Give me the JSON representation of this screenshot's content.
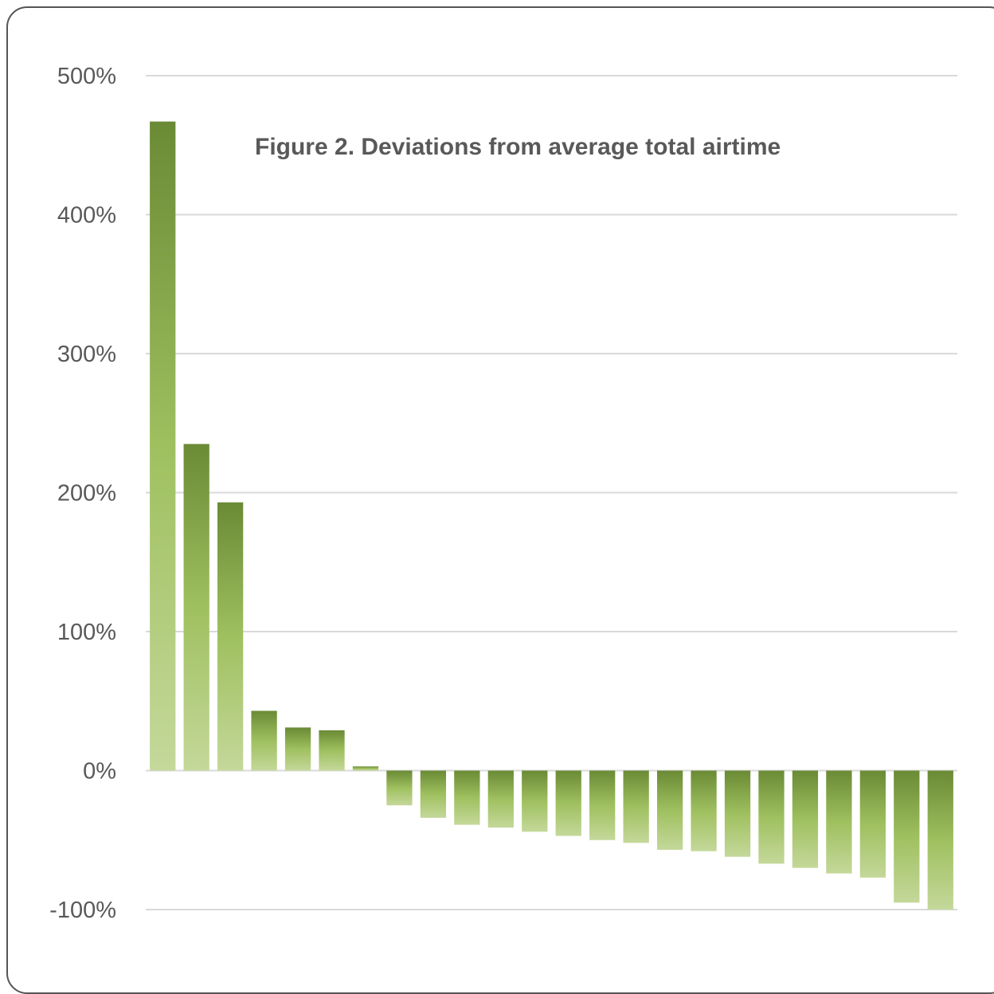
{
  "chart_data": {
    "type": "bar",
    "title": "Figure 2. Deviations from average total airtime",
    "xlabel": "",
    "ylabel": "",
    "ylim": [
      -100,
      500
    ],
    "y_ticks": [
      500,
      400,
      300,
      200,
      100,
      0,
      -100
    ],
    "y_tick_labels": [
      "500%",
      "400%",
      "300%",
      "200%",
      "100%",
      "0%",
      "-100%"
    ],
    "grid": true,
    "legend": "none",
    "value_unit": "%",
    "values": [
      467,
      235,
      193,
      43,
      31,
      29,
      3,
      -25,
      -34,
      -39,
      -41,
      -44,
      -47,
      -50,
      -52,
      -57,
      -58,
      -62,
      -67,
      -70,
      -74,
      -77,
      -95,
      -100
    ]
  },
  "colors": {
    "bar_dark": "#6a8a35",
    "bar_mid": "#9fc05f",
    "bar_light": "#c4d89a",
    "gridline": "#d9d9d9",
    "text": "#595959",
    "frame": "#555555"
  }
}
